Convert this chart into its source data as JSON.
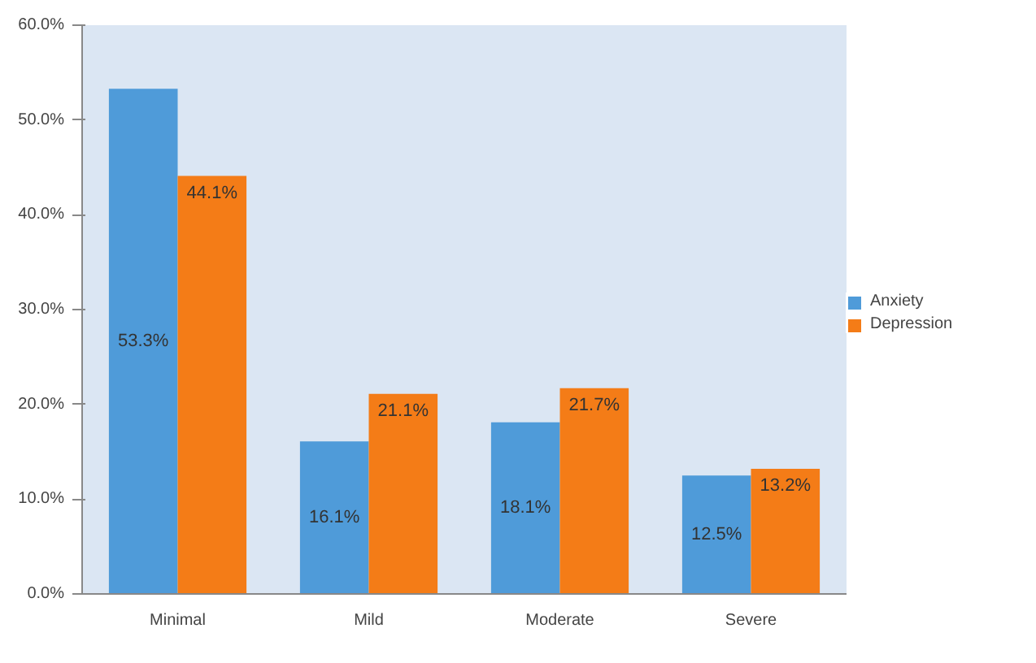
{
  "chart_data": {
    "type": "bar",
    "categories": [
      "Minimal",
      "Mild",
      "Moderate",
      "Severe"
    ],
    "series": [
      {
        "name": "Anxiety",
        "color": "#4f9bd9",
        "values": [
          53.3,
          16.1,
          18.1,
          12.5
        ],
        "value_labels": [
          "53.3%",
          "16.1%",
          "18.1%",
          "12.5%"
        ]
      },
      {
        "name": "Depression",
        "color": "#f47c17",
        "values": [
          44.1,
          21.1,
          21.7,
          13.2
        ],
        "value_labels": [
          "44.1%",
          "21.1%",
          "21.7%",
          "13.2%"
        ]
      }
    ],
    "ylim": [
      0,
      60
    ],
    "yticks": [
      {
        "value": 0,
        "label": "0.0%"
      },
      {
        "value": 10,
        "label": "10.0%"
      },
      {
        "value": 20,
        "label": "20.0%"
      },
      {
        "value": 30,
        "label": "30.0%"
      },
      {
        "value": 40,
        "label": "40.0%"
      },
      {
        "value": 50,
        "label": "50.0%"
      },
      {
        "value": 60,
        "label": "60.0%"
      }
    ],
    "grid": false,
    "legend": "right"
  }
}
